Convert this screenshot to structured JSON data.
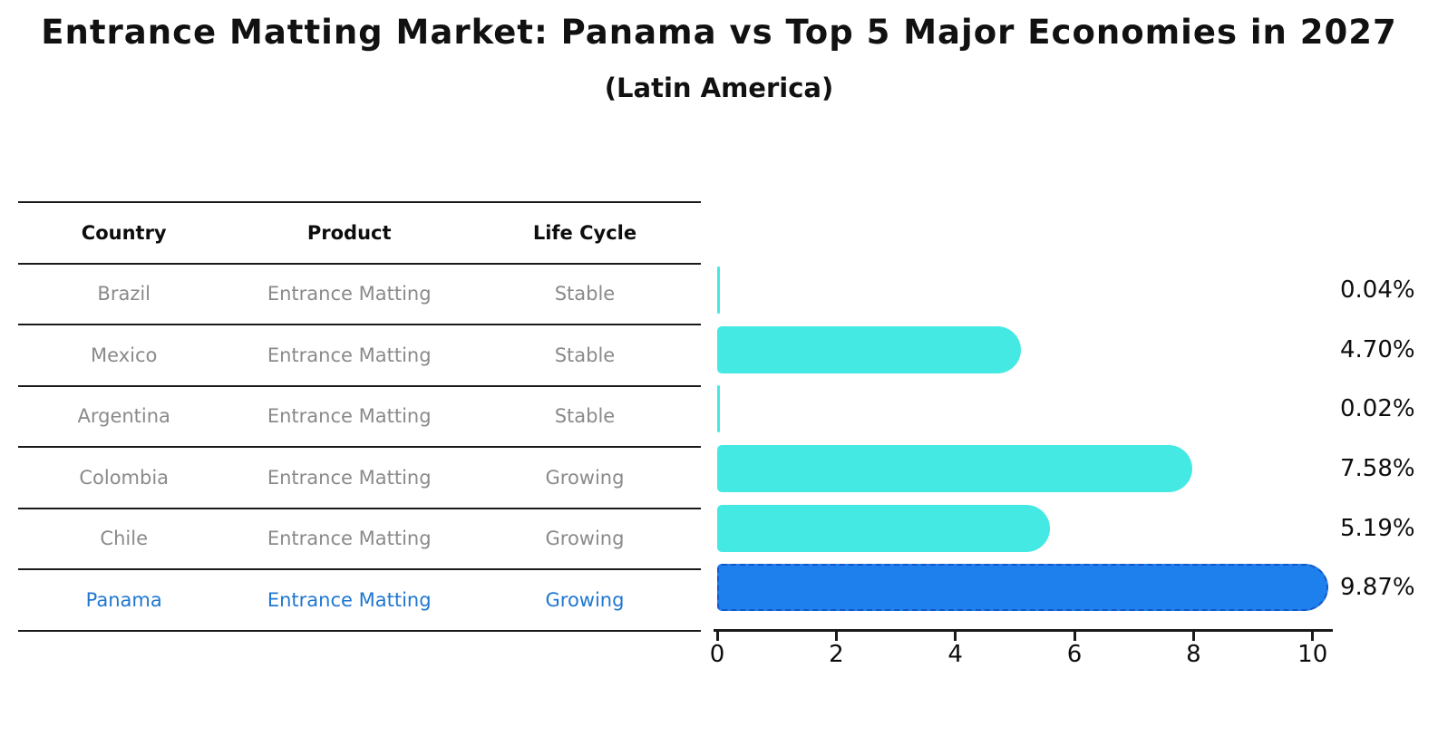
{
  "title": "Entrance Matting Market: Panama vs Top 5 Major Economies in 2027",
  "subtitle": "(Latin America)",
  "table": {
    "headers": [
      "Country",
      "Product",
      "Life Cycle"
    ],
    "rows": [
      {
        "country": "Brazil",
        "product": "Entrance Matting",
        "life_cycle": "Stable",
        "highlight": false
      },
      {
        "country": "Mexico",
        "product": "Entrance Matting",
        "life_cycle": "Stable",
        "highlight": false
      },
      {
        "country": "Argentina",
        "product": "Entrance Matting",
        "life_cycle": "Stable",
        "highlight": false
      },
      {
        "country": "Colombia",
        "product": "Entrance Matting",
        "life_cycle": "Growing",
        "highlight": false
      },
      {
        "country": "Chile",
        "product": "Entrance Matting",
        "life_cycle": "Growing",
        "highlight": false
      },
      {
        "country": "Panama",
        "product": "Entrance Matting",
        "life_cycle": "Growing",
        "highlight": true
      }
    ]
  },
  "chart_data": {
    "type": "bar",
    "orientation": "horizontal",
    "title": "Entrance Matting Market: Panama vs Top 5 Major Economies in 2027",
    "subtitle": "(Latin America)",
    "categories": [
      "Brazil",
      "Mexico",
      "Argentina",
      "Colombia",
      "Chile",
      "Panama"
    ],
    "values": [
      0.04,
      4.7,
      0.02,
      7.58,
      5.19,
      9.87
    ],
    "value_labels": [
      "0.04%",
      "4.70%",
      "0.02%",
      "7.58%",
      "5.19%",
      "9.87%"
    ],
    "x_ticks": [
      0,
      2,
      4,
      6,
      8,
      10
    ],
    "xlim": [
      0,
      10.4
    ],
    "grid": false,
    "legend": false,
    "highlight_index": 5,
    "bar_color": "#45E9E3",
    "highlight_bar_color": "#1E80EC",
    "highlight_bar_border_color": "#1557C8",
    "highlight_text_color": "#1f77d0",
    "body_text_color": "#8a8a8a",
    "axis_color": "#1a1a1a"
  }
}
